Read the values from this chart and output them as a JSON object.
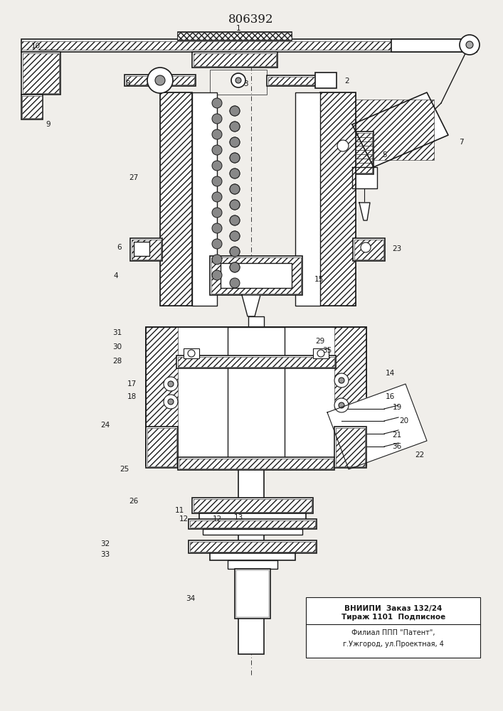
{
  "title": "806392",
  "bg_color": "#f0eeea",
  "line_color": "#1a1a1a",
  "title_fontsize": 12,
  "label_fontsize": 7.5,
  "bottom_text_lines": [
    "ВНИИПИ  Заказ 132/24",
    "Тираж 1101  Подписное"
  ],
  "bottom_text2_lines": [
    "Филиал ППП \"Патент\",",
    "г.Ужгород, ул.Проектная, 4"
  ]
}
